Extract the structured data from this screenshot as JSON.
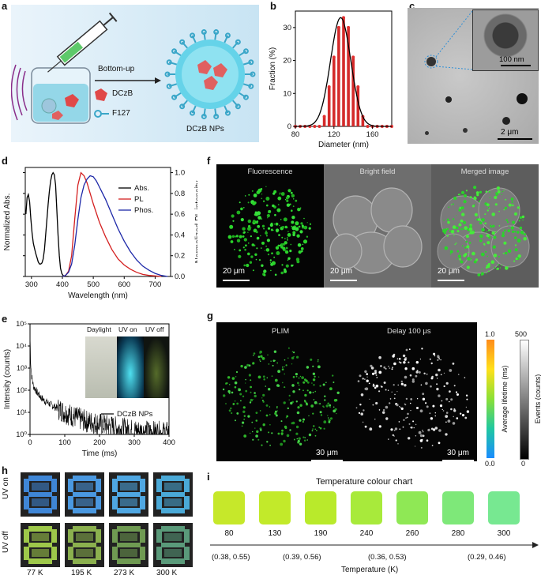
{
  "panels": {
    "a": "a",
    "b": "b",
    "c": "c",
    "d": "d",
    "e": "e",
    "f": "f",
    "g": "g",
    "h": "h",
    "i": "i"
  },
  "schematic": {
    "arrow_label": "Bottom-up",
    "legend_1": "DCzB",
    "legend_2": "F127",
    "product": "DCzB NPs"
  },
  "tem": {
    "inset_scale": "100 nm",
    "scale": "2 μm"
  },
  "fluor_images": {
    "titles": [
      "Fluorescence",
      "Bright field",
      "Merged image"
    ],
    "scales": [
      "20 μm",
      "20 μm",
      "20 μm"
    ]
  },
  "plim": {
    "titles": [
      "PLIM",
      "Delay 100 μs"
    ],
    "scales": [
      "30 μm",
      "30 μm"
    ],
    "cbar1": {
      "label": "Average lifetime (ms)",
      "max": "1.0",
      "min": "0.0"
    },
    "cbar2": {
      "label": "Events (counts)",
      "max": "500",
      "min": "0"
    }
  },
  "vial_photos": {
    "labels": [
      "Daylight",
      "UV on",
      "UV off"
    ]
  },
  "digits": {
    "row_labels": [
      "UV on",
      "UV off"
    ],
    "temps": [
      "77 K",
      "195 K",
      "273 K",
      "300 K"
    ],
    "on_colors": [
      "#3f86d6",
      "#4a98e0",
      "#4fa7e2",
      "#4aa9d7"
    ],
    "off_colors": [
      "#9ec84a",
      "#8bb04e",
      "#6f9a52",
      "#5a9a7a"
    ]
  },
  "colour_chart": {
    "title": "Temperature colour chart",
    "xlabel": "Temperature (K)",
    "temps": [
      "80",
      "130",
      "190",
      "240",
      "260",
      "280",
      "300"
    ],
    "coords": [
      "(0.38, 0.55)",
      "(0.39, 0.56)",
      "(0.36, 0.53)",
      "(0.29, 0.46)"
    ],
    "colors": [
      "#c6e82a",
      "#c2ea2a",
      "#b9ea2b",
      "#a8ea3b",
      "#8fe855",
      "#7ee879",
      "#77e891"
    ]
  },
  "chart_data": [
    {
      "type": "bar",
      "panel": "b",
      "xlabel": "Diameter (nm)",
      "ylabel": "Fraction (%)",
      "xlim": [
        80,
        180
      ],
      "ylim": [
        0,
        35
      ],
      "xticks": [
        "80",
        "120",
        "160"
      ],
      "yticks": [
        "0",
        "10",
        "20",
        "30"
      ],
      "x": [
        80,
        85,
        90,
        95,
        100,
        105,
        110,
        115,
        120,
        125,
        130,
        135,
        140,
        145,
        150,
        155,
        160,
        165,
        170,
        175,
        180
      ],
      "values": [
        0,
        0,
        0,
        0,
        0,
        0,
        3,
        12,
        21,
        30,
        33,
        30,
        21,
        12,
        3,
        0,
        0,
        0,
        0,
        0,
        0
      ],
      "fit": "gaussian",
      "fit_center": 127,
      "fit_sigma": 10.5,
      "fit_peak": 33
    },
    {
      "type": "line",
      "panel": "d",
      "xlabel": "Wavelength (nm)",
      "ylabel": "Normalized Abs.",
      "y2label": "Normalized PL intensity",
      "xlim": [
        280,
        750
      ],
      "ylim": [
        0,
        1.05
      ],
      "xticks": [
        "300",
        "400",
        "500",
        "600",
        "700"
      ],
      "yticks": [
        "0.0",
        "0.2",
        "0.4",
        "0.6",
        "0.8",
        "1.0"
      ],
      "legend": "top-right",
      "series": [
        {
          "name": "Abs.",
          "color": "#000000",
          "x": [
            282,
            286,
            290,
            294,
            298,
            302,
            306,
            310,
            314,
            318,
            322,
            326,
            330,
            334,
            338,
            342,
            346,
            350,
            354,
            358,
            362,
            366,
            370,
            374,
            378,
            382,
            386,
            390,
            394,
            398,
            402,
            406,
            410,
            420
          ],
          "y": [
            0.6,
            0.76,
            0.79,
            0.72,
            0.56,
            0.42,
            0.32,
            0.27,
            0.22,
            0.18,
            0.14,
            0.12,
            0.12,
            0.13,
            0.17,
            0.26,
            0.4,
            0.55,
            0.7,
            0.82,
            0.92,
            0.98,
            1.0,
            0.98,
            0.88,
            0.65,
            0.4,
            0.2,
            0.08,
            0.03,
            0.01,
            0.005,
            0.0,
            0.0
          ]
        },
        {
          "name": "PL",
          "color": "#d42020",
          "x": [
            400,
            410,
            420,
            430,
            440,
            450,
            460,
            470,
            480,
            490,
            500,
            520,
            540,
            560,
            580,
            600,
            620,
            640,
            660,
            680,
            700,
            720
          ],
          "y": [
            0.0,
            0.01,
            0.05,
            0.2,
            0.55,
            0.88,
            1.0,
            0.97,
            0.9,
            0.8,
            0.7,
            0.52,
            0.38,
            0.26,
            0.17,
            0.11,
            0.07,
            0.04,
            0.02,
            0.01,
            0.005,
            0.0
          ]
        },
        {
          "name": "Phos.",
          "color": "#1d28a8",
          "x": [
            400,
            410,
            420,
            430,
            440,
            450,
            460,
            470,
            480,
            490,
            500,
            510,
            520,
            540,
            560,
            580,
            600,
            620,
            640,
            660,
            680,
            700,
            720,
            740
          ],
          "y": [
            0.0,
            0.01,
            0.04,
            0.12,
            0.3,
            0.55,
            0.76,
            0.88,
            0.94,
            0.97,
            0.96,
            0.92,
            0.86,
            0.74,
            0.6,
            0.46,
            0.34,
            0.24,
            0.16,
            0.1,
            0.06,
            0.03,
            0.01,
            0.0
          ]
        }
      ]
    },
    {
      "type": "line",
      "panel": "e",
      "xlabel": "Time (ms)",
      "ylabel": "Intensity (counts)",
      "xlim": [
        0,
        400
      ],
      "yscale": "log",
      "ylim": [
        1,
        100000
      ],
      "xticks": [
        "0",
        "100",
        "200",
        "300",
        "400"
      ],
      "yticks": [
        "10⁰",
        "10¹",
        "10²",
        "10³",
        "10⁴",
        "10⁵"
      ],
      "legend": "bottom-right",
      "series": [
        {
          "name": "DCzB NPs",
          "color": "#000000",
          "x": [
            0,
            2,
            5,
            10,
            20,
            30,
            40,
            60,
            80,
            100,
            130,
            160,
            200,
            250,
            300,
            350,
            400
          ],
          "y": [
            30000,
            1500,
            400,
            150,
            80,
            50,
            35,
            22,
            15,
            10,
            6,
            4,
            3,
            2,
            1.5,
            1.3,
            1.2
          ]
        }
      ]
    }
  ]
}
